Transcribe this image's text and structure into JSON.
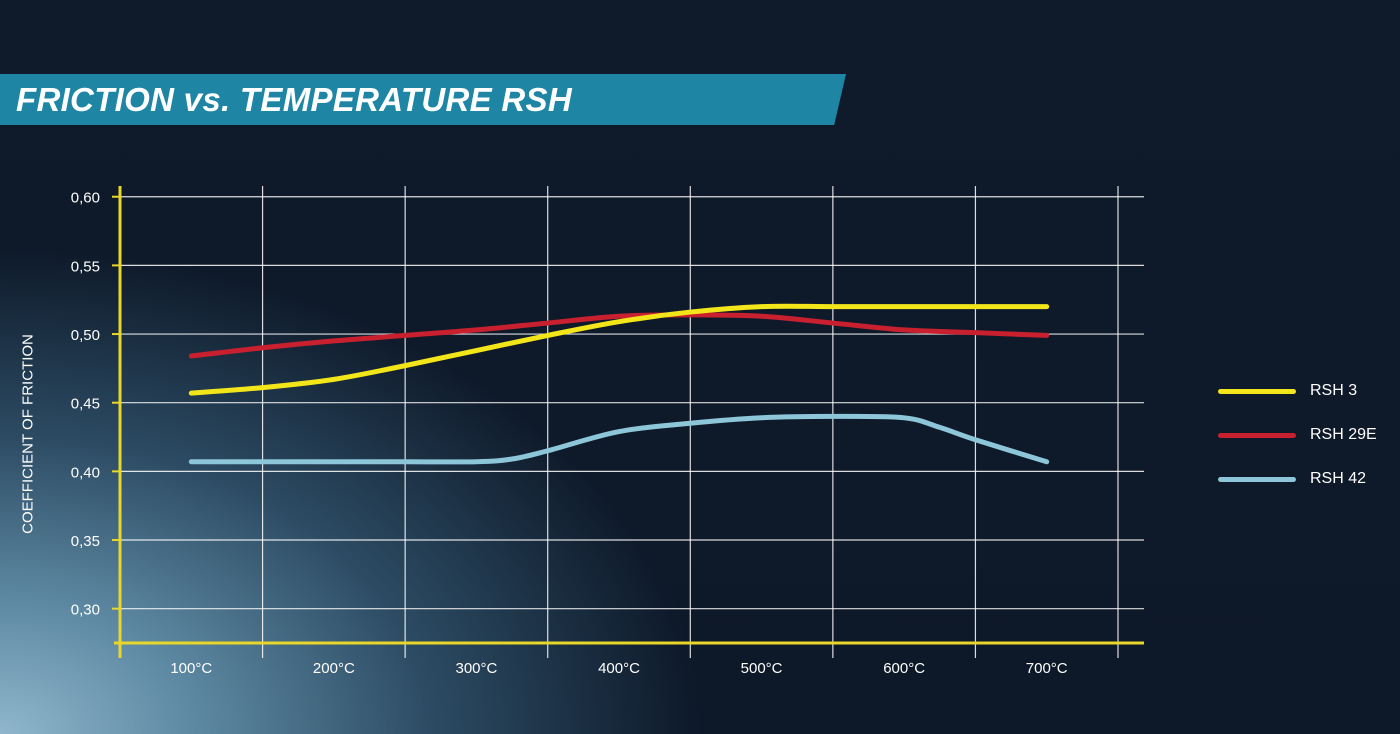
{
  "title": "FRICTION vs. TEMPERATURE RSH",
  "colors": {
    "banner": "#1e86a4",
    "axis": "#e8d62a",
    "grid": "#ffffff",
    "rsh3": "#f2e51a",
    "rsh29e": "#c8202e",
    "rsh42": "#8cc6d8"
  },
  "chart_data": {
    "type": "line",
    "title": "FRICTION vs. TEMPERATURE RSH",
    "xlabel": "",
    "ylabel": "COEFFICIENT OF FRICTION",
    "x_tick_labels": [
      "100°C",
      "200°C",
      "300°C",
      "400°C",
      "500°C",
      "600°C",
      "700°C"
    ],
    "y_tick_labels": [
      "0,60",
      "0,55",
      "0,50",
      "0,45",
      "0,40",
      "0,35",
      "0,30"
    ],
    "y_ticks": [
      0.6,
      0.55,
      0.5,
      0.45,
      0.4,
      0.35,
      0.3
    ],
    "xlim": [
      50,
      750
    ],
    "ylim": [
      0.275,
      0.61
    ],
    "grid": true,
    "legend_position": "right",
    "series": [
      {
        "name": "RSH 3",
        "color": "#f2e51a",
        "x": [
          100,
          150,
          200,
          250,
          300,
          350,
          400,
          450,
          500,
          550,
          600,
          650,
          700
        ],
        "y": [
          0.457,
          0.461,
          0.467,
          0.477,
          0.488,
          0.499,
          0.509,
          0.516,
          0.52,
          0.52,
          0.52,
          0.52,
          0.52
        ]
      },
      {
        "name": "RSH 29E",
        "color": "#c8202e",
        "x": [
          100,
          150,
          200,
          250,
          300,
          350,
          400,
          450,
          500,
          550,
          600,
          650,
          700
        ],
        "y": [
          0.484,
          0.49,
          0.495,
          0.499,
          0.503,
          0.508,
          0.513,
          0.514,
          0.513,
          0.508,
          0.503,
          0.501,
          0.499
        ]
      },
      {
        "name": "RSH 42",
        "color": "#8cc6d8",
        "x": [
          100,
          150,
          200,
          250,
          300,
          325,
          350,
          400,
          450,
          500,
          550,
          600,
          625,
          650,
          700
        ],
        "y": [
          0.407,
          0.407,
          0.407,
          0.407,
          0.407,
          0.409,
          0.415,
          0.429,
          0.435,
          0.439,
          0.44,
          0.439,
          0.432,
          0.423,
          0.407
        ]
      }
    ]
  }
}
